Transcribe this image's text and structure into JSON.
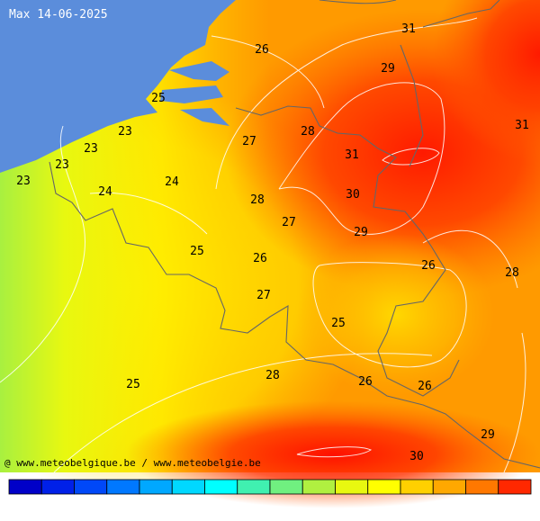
{
  "title": "Max 14-06-2025",
  "credit": "@ www.meteobelgique.be / www.meteobelgie.be",
  "labels": [
    31,
    26,
    29,
    25,
    31,
    23,
    28,
    27,
    23,
    31,
    23,
    23,
    24,
    24,
    30,
    28,
    27,
    29,
    25,
    26,
    26,
    28,
    27,
    25,
    28,
    26,
    25,
    26,
    29,
    30
  ]
}
